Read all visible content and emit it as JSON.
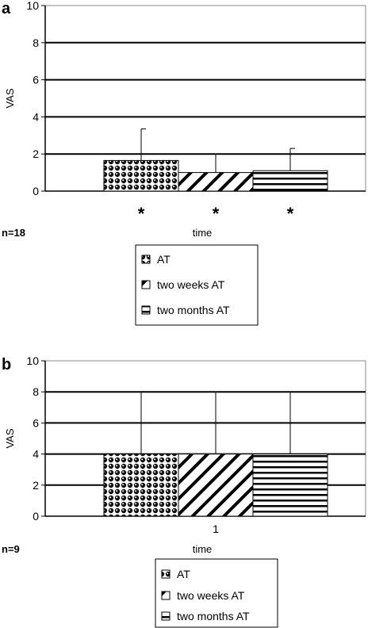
{
  "chart_data": [
    {
      "type": "bar",
      "panel_label": "a",
      "sample_size": "n=18",
      "xlabel": "time",
      "ylabel": "VAS",
      "ylim": [
        0,
        10
      ],
      "yticks": [
        "0",
        "2",
        "4",
        "6",
        "8",
        "10"
      ],
      "categories": [
        ""
      ],
      "grid": true,
      "legend_position": "bottom",
      "series": [
        {
          "name": "AT",
          "values": [
            1.65
          ],
          "error": [
            1.7
          ],
          "pattern": "dots",
          "significance": "*"
        },
        {
          "name": "two weeks AT",
          "values": [
            1.0
          ],
          "error": [
            1.0
          ],
          "pattern": "diagonal",
          "significance": "*"
        },
        {
          "name": "two months AT",
          "values": [
            1.1
          ],
          "error": [
            1.2
          ],
          "pattern": "horizontal",
          "significance": "*"
        }
      ]
    },
    {
      "type": "bar",
      "panel_label": "b",
      "sample_size": "n=9",
      "xlabel": "time",
      "ylabel": "VAS",
      "ylim": [
        0,
        10
      ],
      "yticks": [
        "0",
        "2",
        "4",
        "6",
        "8",
        "10"
      ],
      "categories": [
        "1"
      ],
      "grid": true,
      "legend_position": "bottom",
      "series": [
        {
          "name": "AT",
          "values": [
            4.0
          ],
          "error": [
            4.0
          ],
          "pattern": "dots",
          "significance": ""
        },
        {
          "name": "two weeks AT",
          "values": [
            4.0
          ],
          "error": [
            4.0
          ],
          "pattern": "diagonal",
          "significance": ""
        },
        {
          "name": "two months AT",
          "values": [
            4.0
          ],
          "error": [
            4.0
          ],
          "pattern": "horizontal",
          "significance": ""
        }
      ]
    }
  ]
}
